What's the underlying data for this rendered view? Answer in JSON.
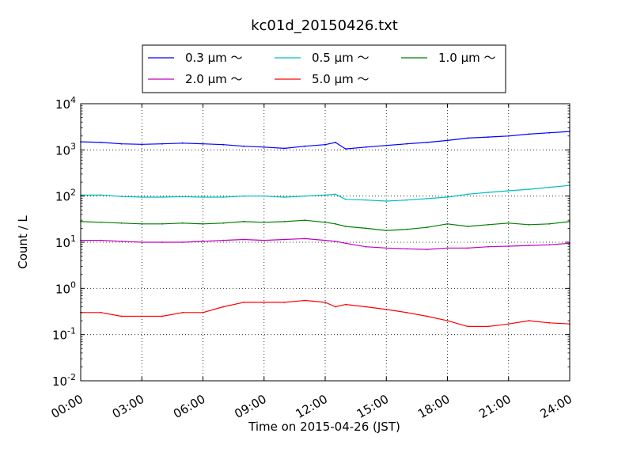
{
  "chart_data": {
    "type": "line",
    "title": "kc01d_20150426.txt",
    "xlabel": "Time on 2015-04-26 (JST)",
    "ylabel": "Count / L",
    "y_scale": "log",
    "ylim": [
      0.01,
      10000
    ],
    "xlim": [
      "00:00",
      "24:00"
    ],
    "x_ticks": [
      "00:00",
      "03:00",
      "06:00",
      "09:00",
      "12:00",
      "15:00",
      "18:00",
      "21:00",
      "24:00"
    ],
    "y_ticks": [
      {
        "base": "10",
        "exp": "-2"
      },
      {
        "base": "10",
        "exp": "-1"
      },
      {
        "base": "10",
        "exp": "0"
      },
      {
        "base": "10",
        "exp": "1"
      },
      {
        "base": "10",
        "exp": "2"
      },
      {
        "base": "10",
        "exp": "3"
      },
      {
        "base": "10",
        "exp": "4"
      }
    ],
    "grid": true,
    "legend_position": "top-center",
    "x": [
      "00:00",
      "01:00",
      "02:00",
      "03:00",
      "04:00",
      "05:00",
      "06:00",
      "07:00",
      "08:00",
      "09:00",
      "10:00",
      "11:00",
      "12:00",
      "12:30",
      "13:00",
      "14:00",
      "15:00",
      "16:00",
      "17:00",
      "18:00",
      "19:00",
      "20:00",
      "21:00",
      "22:00",
      "23:00",
      "24:00"
    ],
    "series": [
      {
        "name": "0.3 μm ～",
        "color": "#0000ff",
        "values": [
          1500,
          1450,
          1350,
          1320,
          1350,
          1400,
          1350,
          1300,
          1200,
          1150,
          1080,
          1200,
          1300,
          1450,
          1050,
          1150,
          1250,
          1350,
          1450,
          1600,
          1800,
          1900,
          2000,
          2200,
          2350,
          2500
        ]
      },
      {
        "name": "0.5 μm ～",
        "color": "#00bfbf",
        "values": [
          105,
          105,
          98,
          95,
          95,
          97,
          95,
          95,
          100,
          100,
          95,
          100,
          105,
          110,
          85,
          82,
          78,
          82,
          88,
          95,
          110,
          120,
          130,
          140,
          155,
          170
        ]
      },
      {
        "name": "1.0 μm ～",
        "color": "#008000",
        "values": [
          28,
          27,
          26,
          25,
          25,
          26,
          25,
          26,
          28,
          27,
          28,
          30,
          27,
          25,
          22,
          20,
          18,
          19,
          21,
          25,
          22,
          24,
          26,
          24,
          25,
          28
        ]
      },
      {
        "name": "2.0 μm ～",
        "color": "#bf00bf",
        "values": [
          11,
          11,
          10.5,
          10,
          10,
          10,
          10.5,
          11,
          11.5,
          11,
          11.5,
          12,
          11,
          10.5,
          9.5,
          8,
          7.5,
          7.2,
          7,
          7.5,
          7.5,
          8,
          8.2,
          8.5,
          8.8,
          9.5
        ]
      },
      {
        "name": "5.0 μm ～",
        "color": "#ff0000",
        "values": [
          0.3,
          0.3,
          0.25,
          0.25,
          0.25,
          0.3,
          0.3,
          0.4,
          0.5,
          0.5,
          0.5,
          0.55,
          0.5,
          0.4,
          0.45,
          0.4,
          0.35,
          0.3,
          0.25,
          0.2,
          0.15,
          0.15,
          0.17,
          0.2,
          0.18,
          0.17
        ]
      }
    ]
  }
}
